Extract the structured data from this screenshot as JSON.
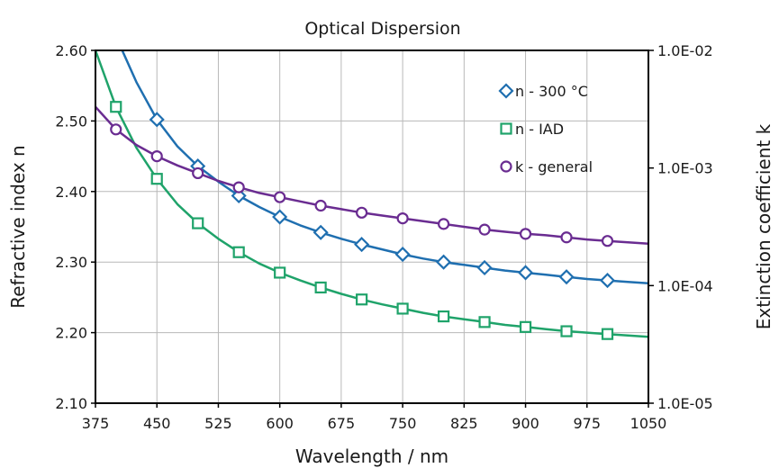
{
  "chart_data": {
    "type": "line",
    "title": "Optical Dispersion",
    "xlabel": "Wavelength / nm",
    "ylabel": "Refractive index n",
    "y2label": "Extinction coefficient k",
    "xlim": [
      375,
      1050
    ],
    "ylim": [
      2.1,
      2.6
    ],
    "y2lim": [
      1e-05,
      0.01
    ],
    "y2scale": "log",
    "grid": true,
    "legend_position": "top-right",
    "xticks": [
      375,
      450,
      525,
      600,
      675,
      750,
      825,
      900,
      975,
      1050
    ],
    "xtick_labels": [
      "375",
      "450",
      "525",
      "600",
      "675",
      "750",
      "825",
      "900",
      "975",
      "1050"
    ],
    "yticks": [
      2.1,
      2.2,
      2.3,
      2.4,
      2.5,
      2.6
    ],
    "ytick_labels": [
      "2.10",
      "2.20",
      "2.30",
      "2.40",
      "2.50",
      "2.60"
    ],
    "y2ticks": [
      1e-05,
      0.0001,
      0.001,
      0.01
    ],
    "y2tick_labels": [
      "1.0E-05",
      "1.0E-04",
      "1.0E-03",
      "1.0E-02"
    ],
    "series": [
      {
        "name": "n - 300 °C",
        "axis": "left",
        "color": "#1f6fb0",
        "marker": "diamond",
        "curve_x": [
          400,
          425,
          450,
          475,
          500,
          525,
          550,
          575,
          600,
          625,
          650,
          675,
          700,
          725,
          750,
          775,
          800,
          825,
          850,
          875,
          900,
          925,
          950,
          975,
          1000,
          1025,
          1050
        ],
        "curve_y": [
          2.62,
          2.555,
          2.502,
          2.464,
          2.436,
          2.414,
          2.394,
          2.378,
          2.364,
          2.352,
          2.342,
          2.333,
          2.325,
          2.318,
          2.311,
          2.305,
          2.3,
          2.296,
          2.292,
          2.288,
          2.285,
          2.282,
          2.279,
          2.276,
          2.274,
          2.272,
          2.27
        ],
        "marker_x": [
          450,
          500,
          550,
          600,
          650,
          700,
          750,
          800,
          850,
          900,
          950,
          1000
        ],
        "marker_y": [
          2.502,
          2.436,
          2.394,
          2.364,
          2.342,
          2.325,
          2.311,
          2.3,
          2.292,
          2.285,
          2.279,
          2.274
        ]
      },
      {
        "name": "n - IAD",
        "axis": "left",
        "color": "#1fa36a",
        "marker": "square",
        "curve_x": [
          375,
          400,
          425,
          450,
          475,
          500,
          525,
          550,
          575,
          600,
          625,
          650,
          675,
          700,
          725,
          750,
          775,
          800,
          825,
          850,
          875,
          900,
          925,
          950,
          975,
          1000,
          1025,
          1050
        ],
        "curve_y": [
          2.6,
          2.52,
          2.462,
          2.418,
          2.382,
          2.355,
          2.333,
          2.314,
          2.298,
          2.285,
          2.274,
          2.264,
          2.255,
          2.247,
          2.24,
          2.234,
          2.228,
          2.223,
          2.219,
          2.215,
          2.211,
          2.208,
          2.205,
          2.202,
          2.2,
          2.198,
          2.196,
          2.194
        ],
        "marker_x": [
          400,
          450,
          500,
          550,
          600,
          650,
          700,
          750,
          800,
          850,
          900,
          950,
          1000
        ],
        "marker_y": [
          2.52,
          2.418,
          2.355,
          2.314,
          2.285,
          2.264,
          2.247,
          2.234,
          2.223,
          2.215,
          2.208,
          2.202,
          2.198
        ]
      },
      {
        "name": "k - general",
        "axis": "left",
        "color": "#6a2c91",
        "marker": "circle",
        "curve_x": [
          375,
          400,
          425,
          450,
          475,
          500,
          525,
          550,
          575,
          600,
          625,
          650,
          675,
          700,
          725,
          750,
          775,
          800,
          825,
          850,
          875,
          900,
          925,
          950,
          975,
          1000,
          1025,
          1050
        ],
        "curve_y": [
          2.52,
          2.488,
          2.466,
          2.45,
          2.437,
          2.426,
          2.415,
          2.406,
          2.398,
          2.392,
          2.386,
          2.38,
          2.375,
          2.37,
          2.366,
          2.362,
          2.358,
          2.354,
          2.35,
          2.346,
          2.343,
          2.34,
          2.338,
          2.335,
          2.332,
          2.33,
          2.328,
          2.326
        ],
        "marker_x": [
          400,
          450,
          500,
          550,
          600,
          650,
          700,
          750,
          800,
          850,
          900,
          950,
          1000
        ],
        "marker_y": [
          2.488,
          2.45,
          2.426,
          2.406,
          2.392,
          2.38,
          2.37,
          2.362,
          2.354,
          2.346,
          2.34,
          2.335,
          2.33
        ]
      }
    ]
  }
}
